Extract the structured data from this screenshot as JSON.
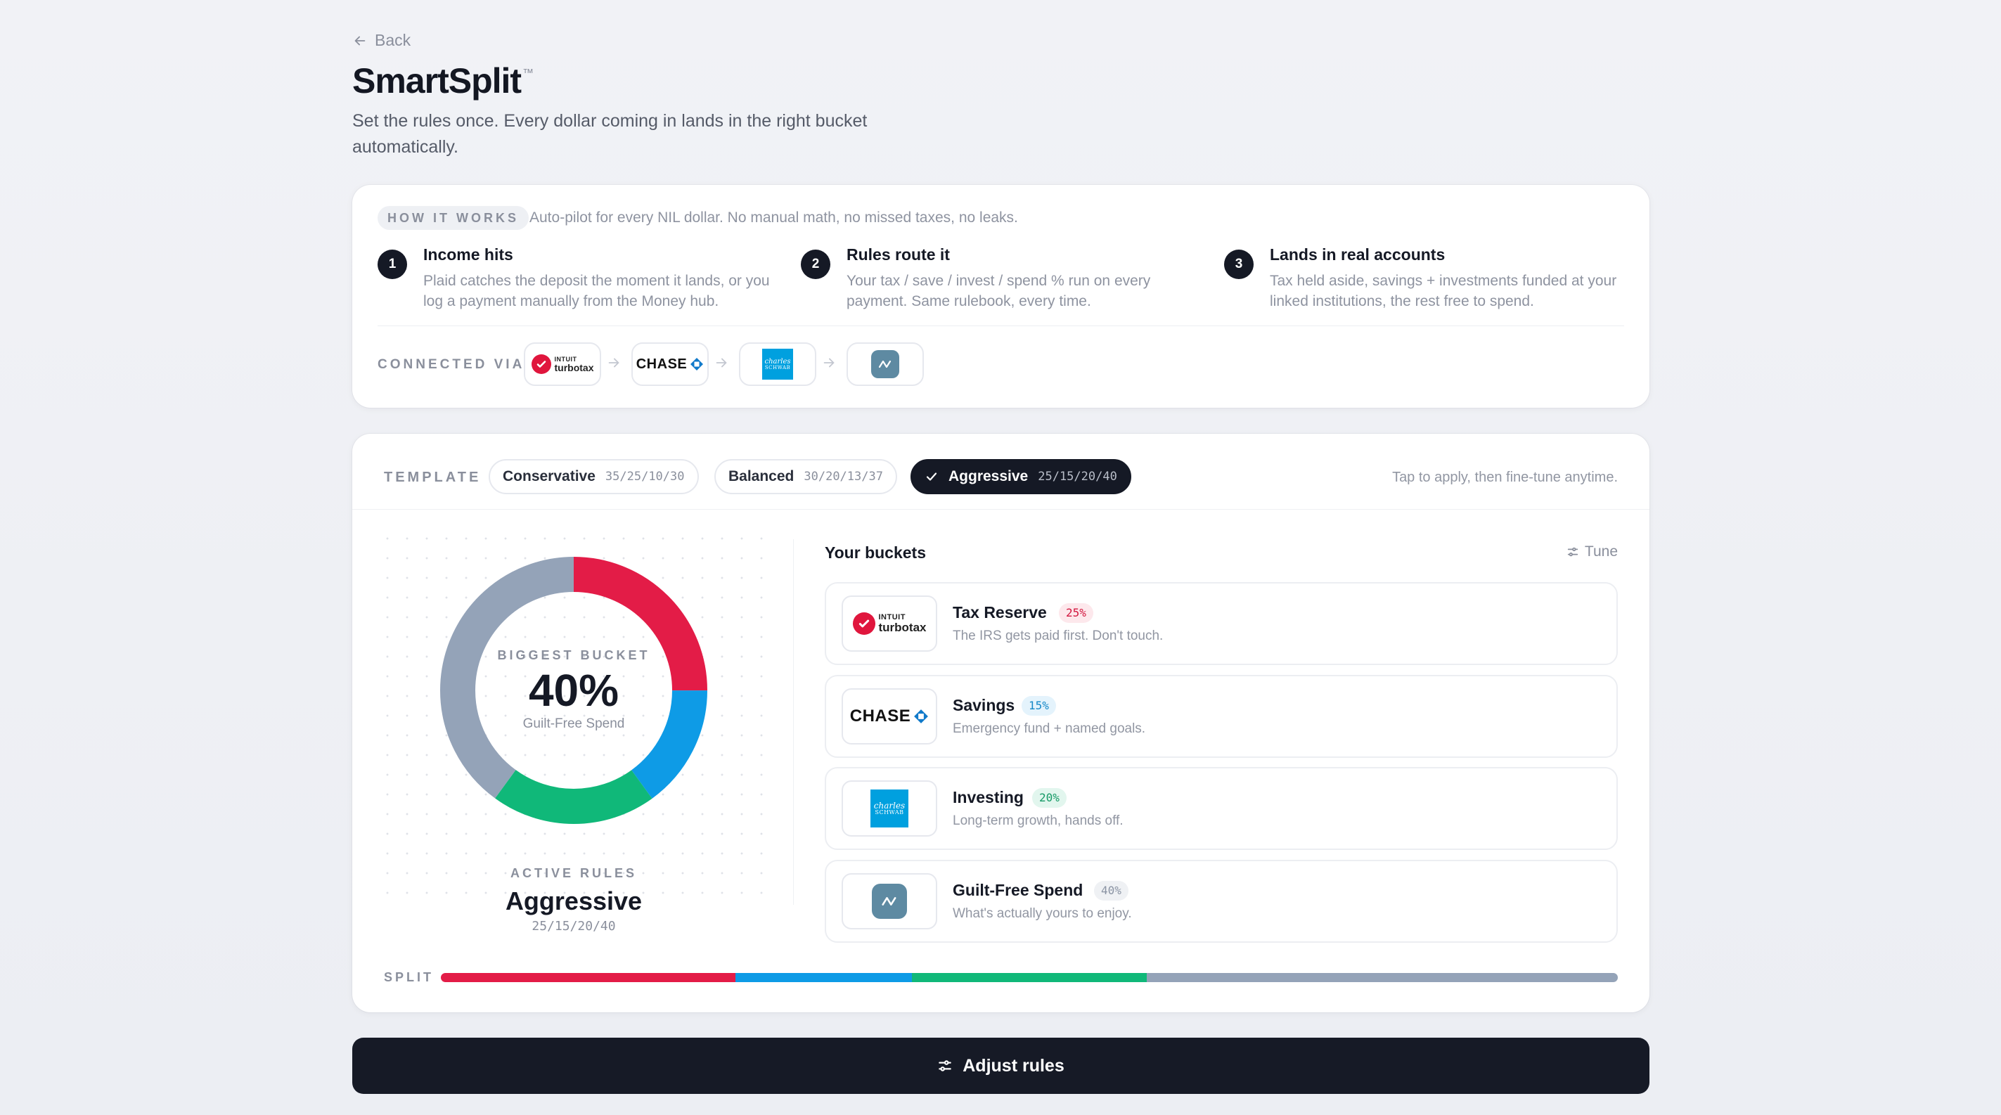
{
  "nav": {
    "back_label": "Back"
  },
  "header": {
    "title": "SmartSplit",
    "trademark": "™",
    "subtitle": "Set the rules once. Every dollar coming in lands in the right bucket automatically."
  },
  "how_it_works": {
    "label": "HOW IT WORKS",
    "note": "Auto-pilot for every NIL dollar. No manual math, no missed taxes, no leaks.",
    "steps": [
      {
        "num": "1",
        "title": "Income hits",
        "desc": "Plaid catches the deposit the moment it lands, or you log a payment manually from the Money hub."
      },
      {
        "num": "2",
        "title": "Rules route it",
        "desc": "Your tax / save / invest / spend % run on every payment. Same rulebook, every time."
      },
      {
        "num": "3",
        "title": "Lands in real accounts",
        "desc": "Tax held aside, savings + investments funded at your linked institutions, the rest free to spend."
      }
    ],
    "connected_label": "CONNECTED VIA",
    "connected": [
      {
        "name": "turbotax",
        "icon": "turbotax-logo"
      },
      {
        "name": "chase",
        "icon": "chase-logo"
      },
      {
        "name": "schwab",
        "icon": "schwab-logo"
      },
      {
        "name": "spend",
        "icon": "wave-logo"
      }
    ]
  },
  "logos": {
    "turbotax_top": "INTUIT",
    "turbotax_bottom": "turbotax",
    "chase": "CHASE",
    "schwab_top": "charles",
    "schwab_bottom": "SCHWAB"
  },
  "templates": {
    "label": "TEMPLATE",
    "hint": "Tap to apply, then fine-tune anytime.",
    "items": [
      {
        "name": "Conservative",
        "split": "35/25/10/30",
        "active": false
      },
      {
        "name": "Balanced",
        "split": "30/20/13/37",
        "active": false
      },
      {
        "name": "Aggressive",
        "split": "25/15/20/40",
        "active": true
      }
    ]
  },
  "summary": {
    "biggest_label": "BIGGEST BUCKET",
    "biggest_value": "40%",
    "biggest_name": "Guilt-Free Spend",
    "active_label": "ACTIVE RULES",
    "active_name": "Aggressive",
    "active_split": "25/15/20/40"
  },
  "buckets": {
    "title": "Your buckets",
    "tune_label": "Tune",
    "items": [
      {
        "name": "Tax Reserve",
        "pct": "25%",
        "value": 25,
        "desc": "The IRS gets paid first. Don't touch.",
        "color": "#e31c47",
        "pill_bg": "#fde8ec",
        "pill_fg": "#d2173f",
        "icon": "turbotax-logo"
      },
      {
        "name": "Savings",
        "pct": "15%",
        "value": 15,
        "desc": "Emergency fund + named goals.",
        "color": "#0e9be6",
        "pill_bg": "#e4f3fc",
        "pill_fg": "#1588c7",
        "icon": "chase-logo"
      },
      {
        "name": "Investing",
        "pct": "20%",
        "value": 20,
        "desc": "Long-term growth, hands off.",
        "color": "#10b879",
        "pill_bg": "#e2f6ee",
        "pill_fg": "#169a66",
        "icon": "schwab-logo"
      },
      {
        "name": "Guilt-Free Spend",
        "pct": "40%",
        "value": 40,
        "desc": "What's actually yours to enjoy.",
        "color": "#94a3b8",
        "pill_bg": "#eff1f4",
        "pill_fg": "#8a93a3",
        "icon": "wave-logo"
      }
    ]
  },
  "split": {
    "label": "SPLIT"
  },
  "actions": {
    "adjust_label": "Adjust rules"
  }
}
